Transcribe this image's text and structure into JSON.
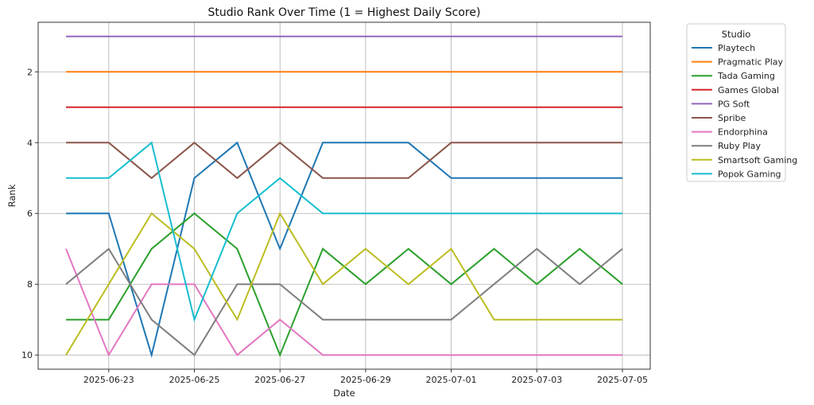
{
  "chart_data": {
    "type": "line",
    "title": "Studio Rank Over Time (1 = Highest Daily Score)",
    "xlabel": "Date",
    "ylabel": "Rank",
    "y_inverted": true,
    "ylim": [
      10.4,
      0.6
    ],
    "grid": true,
    "legend_title": "Studio",
    "legend_position": "outside-right",
    "x": [
      "2025-06-22",
      "2025-06-23",
      "2025-06-24",
      "2025-06-25",
      "2025-06-26",
      "2025-06-27",
      "2025-06-28",
      "2025-06-29",
      "2025-06-30",
      "2025-07-01",
      "2025-07-02",
      "2025-07-03",
      "2025-07-04",
      "2025-07-05"
    ],
    "x_ticks": [
      "2025-06-23",
      "2025-06-25",
      "2025-06-27",
      "2025-06-29",
      "2025-07-01",
      "2025-07-03",
      "2025-07-05"
    ],
    "y_ticks": [
      2,
      4,
      6,
      8,
      10
    ],
    "series": [
      {
        "name": "Playtech",
        "color": "#1f77b4",
        "values": [
          6,
          6,
          10,
          5,
          4,
          7,
          4,
          4,
          4,
          5,
          5,
          5,
          5,
          5
        ]
      },
      {
        "name": "Pragmatic Play",
        "color": "#ff7f0e",
        "values": [
          2,
          2,
          2,
          2,
          2,
          2,
          2,
          2,
          2,
          2,
          2,
          2,
          2,
          2
        ]
      },
      {
        "name": "Tada Gaming",
        "color": "#2ca02c",
        "values": [
          9,
          9,
          7,
          6,
          7,
          10,
          7,
          8,
          7,
          8,
          7,
          8,
          7,
          8
        ]
      },
      {
        "name": "Games Global",
        "color": "#d62728",
        "values": [
          3,
          3,
          3,
          3,
          3,
          3,
          3,
          3,
          3,
          3,
          3,
          3,
          3,
          3
        ]
      },
      {
        "name": "PG Soft",
        "color": "#9467bd",
        "values": [
          1,
          1,
          1,
          1,
          1,
          1,
          1,
          1,
          1,
          1,
          1,
          1,
          1,
          1
        ]
      },
      {
        "name": "Spribe",
        "color": "#8c564b",
        "values": [
          4,
          4,
          5,
          4,
          5,
          4,
          5,
          5,
          5,
          4,
          4,
          4,
          4,
          4
        ]
      },
      {
        "name": "Endorphina",
        "color": "#e377c2",
        "values": [
          7,
          10,
          8,
          8,
          10,
          9,
          10,
          10,
          10,
          10,
          10,
          10,
          10,
          10
        ]
      },
      {
        "name": "Ruby Play",
        "color": "#7f7f7f",
        "values": [
          8,
          7,
          9,
          10,
          8,
          8,
          9,
          9,
          9,
          9,
          8,
          7,
          8,
          7
        ]
      },
      {
        "name": "Smartsoft Gaming",
        "color": "#bcbd22",
        "values": [
          10,
          8,
          6,
          7,
          9,
          6,
          8,
          7,
          8,
          7,
          9,
          9,
          9,
          9
        ]
      },
      {
        "name": "Popok Gaming",
        "color": "#17becf",
        "values": [
          5,
          5,
          4,
          9,
          6,
          5,
          6,
          6,
          6,
          6,
          6,
          6,
          6,
          6
        ]
      }
    ]
  }
}
